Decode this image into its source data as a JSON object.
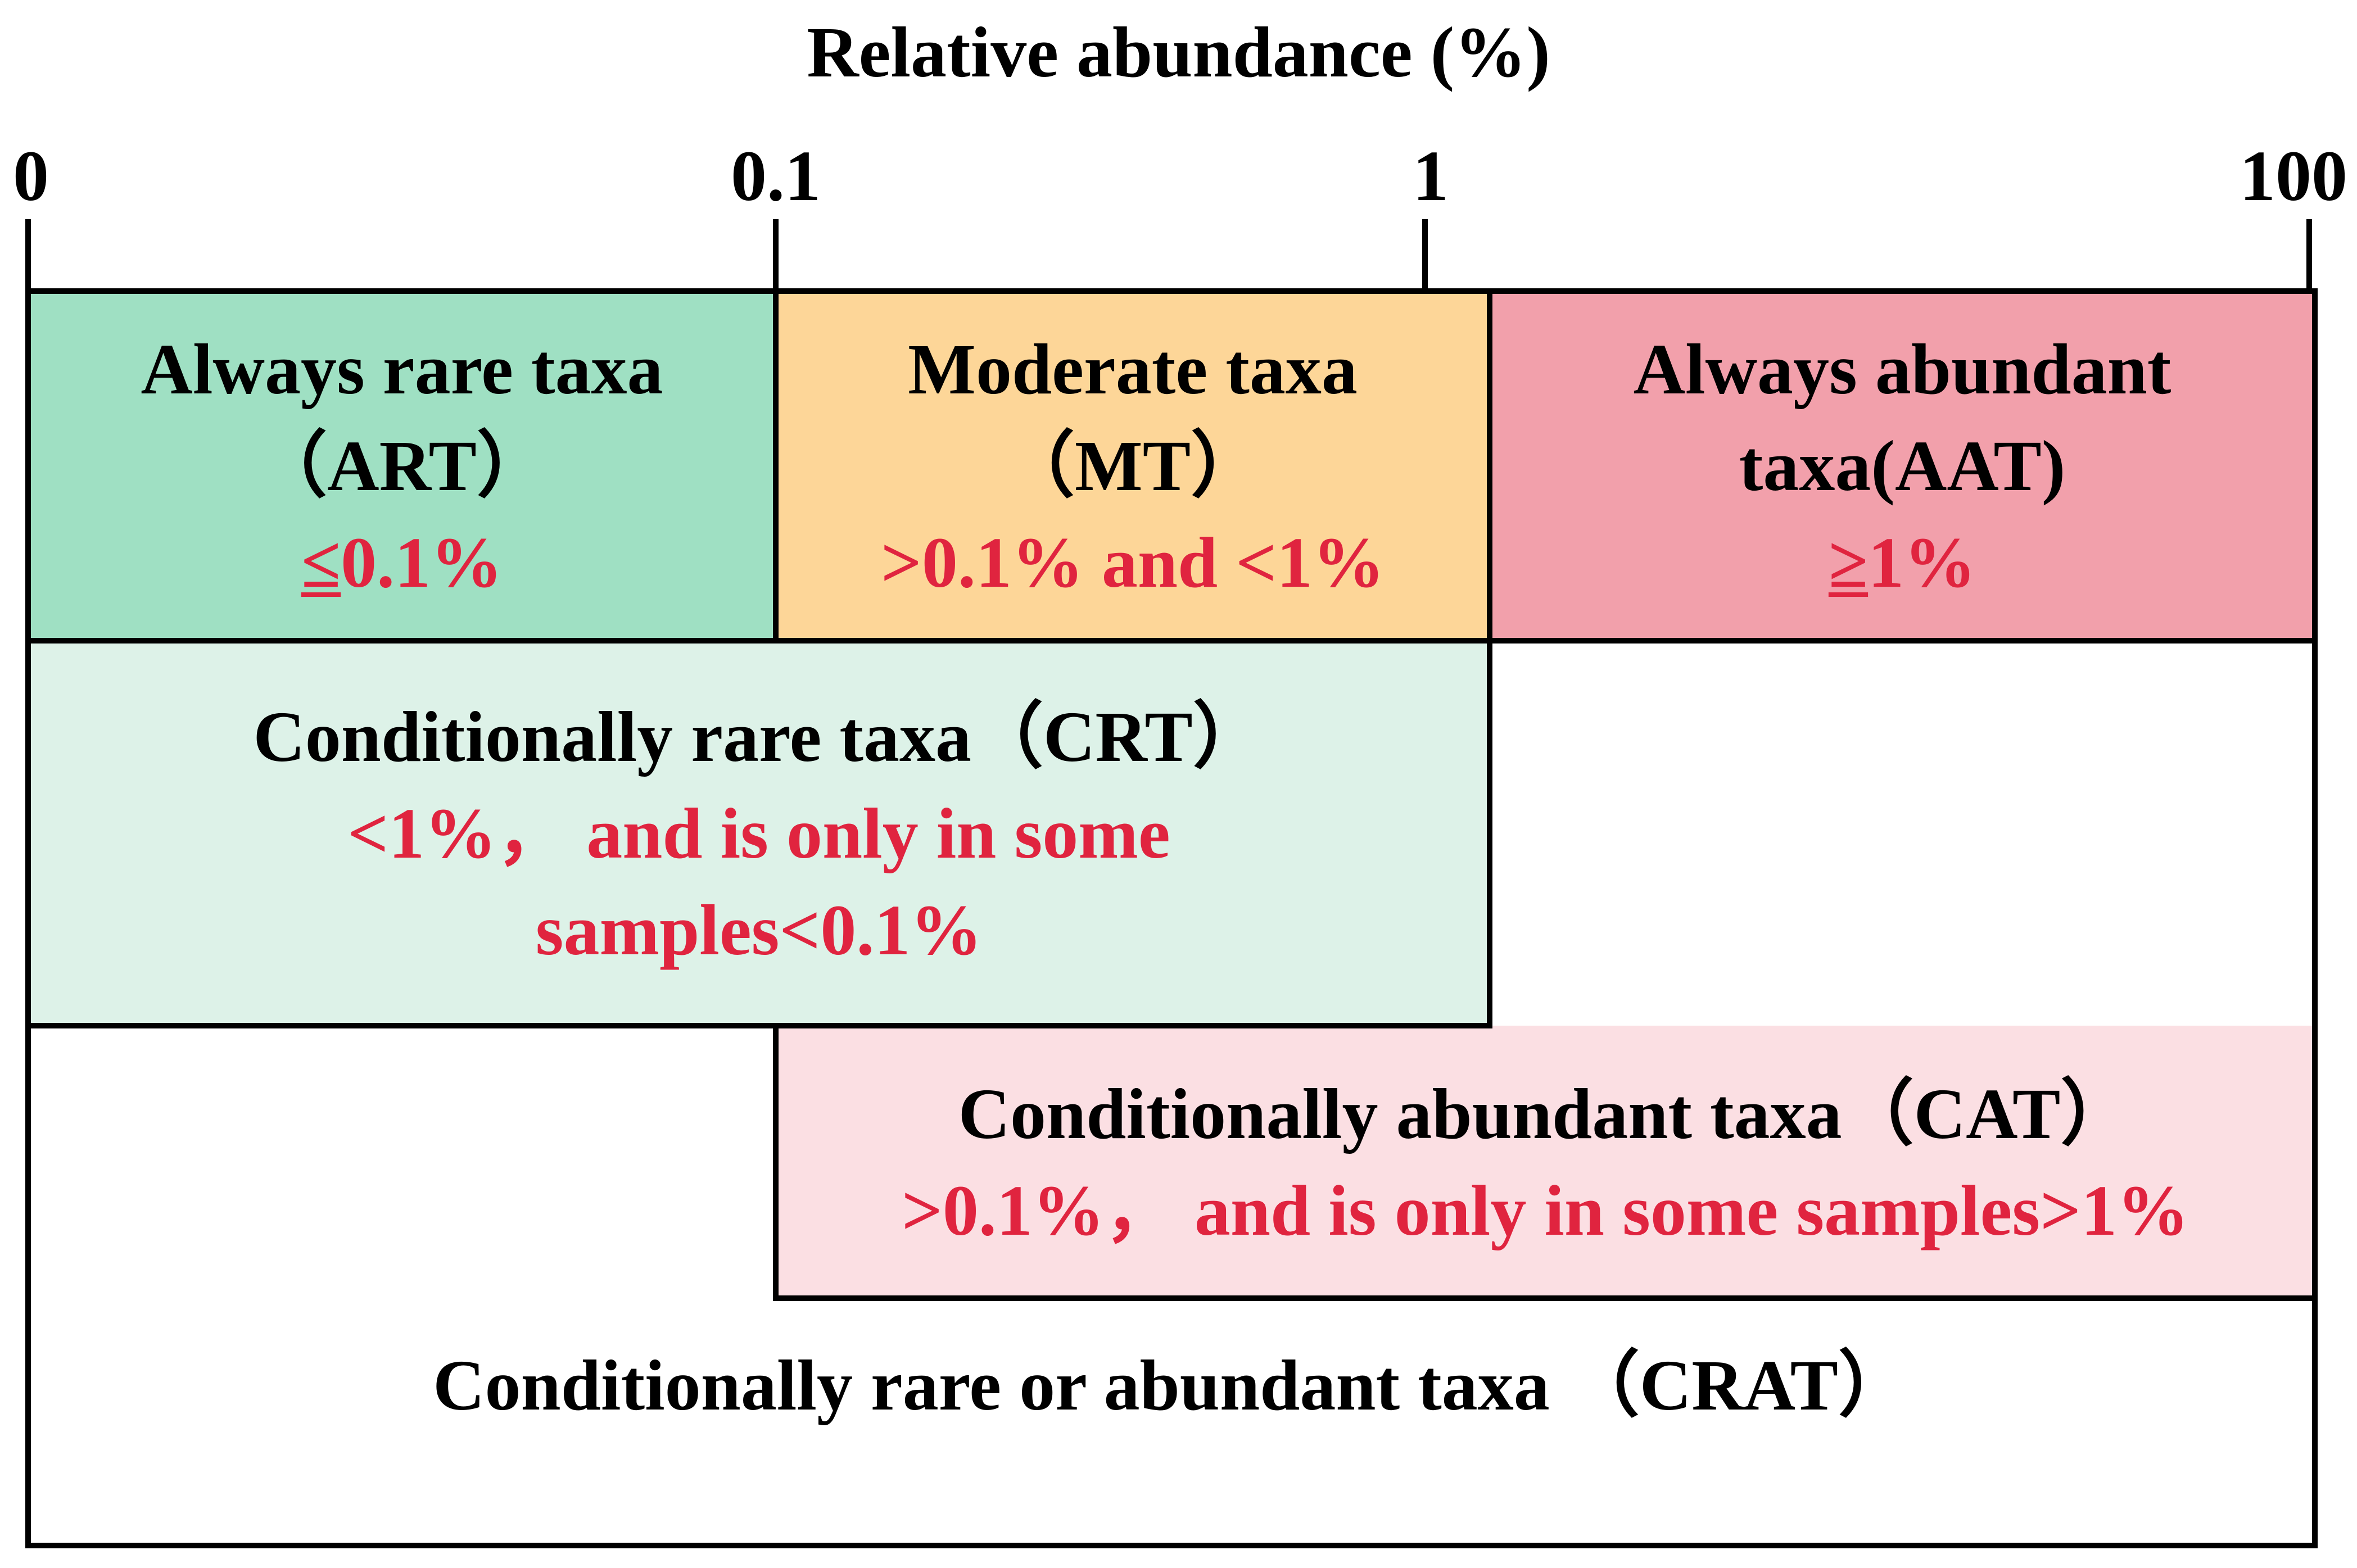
{
  "axis": {
    "title": "Relative abundance (%)",
    "ticks": [
      "0",
      "0.1",
      "1",
      "100"
    ]
  },
  "colors": {
    "art_fill": "#9fe0c3",
    "mt_fill": "#fdd698",
    "aat_fill": "#f2a0ab",
    "crt_fill": "#ddf2e8",
    "cat_fill": "#fbdfe3",
    "criterion_text": "#e0243f",
    "line": "#000000"
  },
  "categories": {
    "art": {
      "name_line1": "Always rare taxa",
      "name_line2": "（ART）",
      "criterion_symbol": "≤",
      "criterion_rest": "0.1%"
    },
    "mt": {
      "name_line1": "Moderate taxa",
      "name_line2": "（MT）",
      "criterion": ">0.1% and <1%"
    },
    "aat": {
      "name_line1": "Always abundant",
      "name_line2": "taxa(AAT)",
      "criterion_symbol": "≥",
      "criterion_rest": "1%"
    },
    "crt": {
      "name": "Conditionally rare taxa（CRT）",
      "criterion_line1": "<1%， and is only  in some",
      "criterion_line2": "samples<0.1%"
    },
    "cat": {
      "name": "Conditionally abundant taxa（CAT）",
      "criterion": ">0.1%， and is only  in some samples>1%"
    },
    "crat": {
      "name": "Conditionally rare or abundant taxa （CRAT）"
    }
  }
}
